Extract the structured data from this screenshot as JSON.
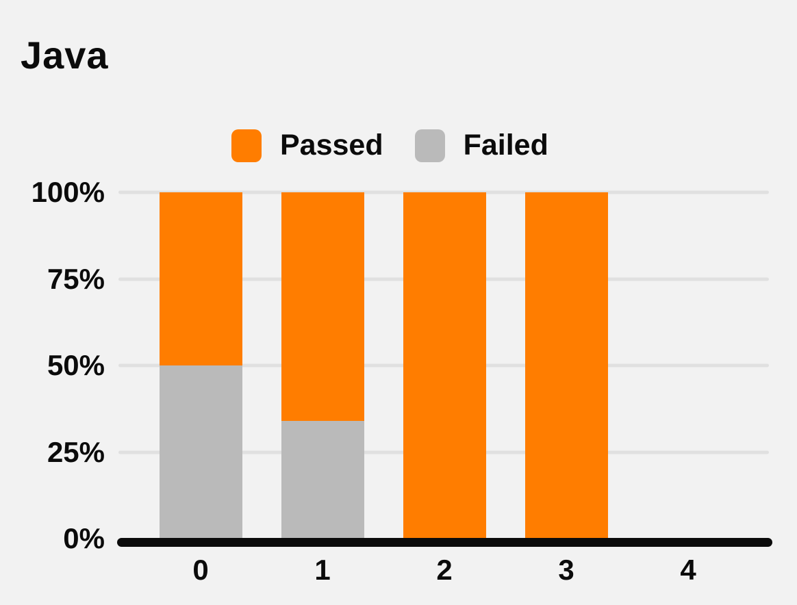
{
  "title": "Java",
  "legend": {
    "items": [
      {
        "label": "Passed",
        "color": "#ff7d00"
      },
      {
        "label": "Failed",
        "color": "#bababa"
      }
    ]
  },
  "chart_data": {
    "type": "bar",
    "stacked": true,
    "title": "Java",
    "categories": [
      "0",
      "1",
      "2",
      "3",
      "4"
    ],
    "series": [
      {
        "name": "Passed",
        "color": "#ff7d00",
        "values": [
          50,
          66,
          100,
          100,
          0
        ]
      },
      {
        "name": "Failed",
        "color": "#bababa",
        "values": [
          50,
          34,
          0,
          0,
          0
        ]
      }
    ],
    "stack_order_bottom_to_top": [
      "Failed",
      "Passed"
    ],
    "x_axis": {
      "ticks": [
        "0",
        "1",
        "2",
        "3",
        "4"
      ]
    },
    "y_axis": {
      "ticks": [
        "100%",
        "75%",
        "50%",
        "25%",
        "0%"
      ],
      "min": 0,
      "max": 100,
      "unit": "%"
    },
    "grid": true,
    "legend_position": "top",
    "colors": {
      "background": "#f2f2f2",
      "gridline": "#e0e0e0",
      "axis_line": "#0b0b0b",
      "text": "#0b0b0b"
    }
  }
}
